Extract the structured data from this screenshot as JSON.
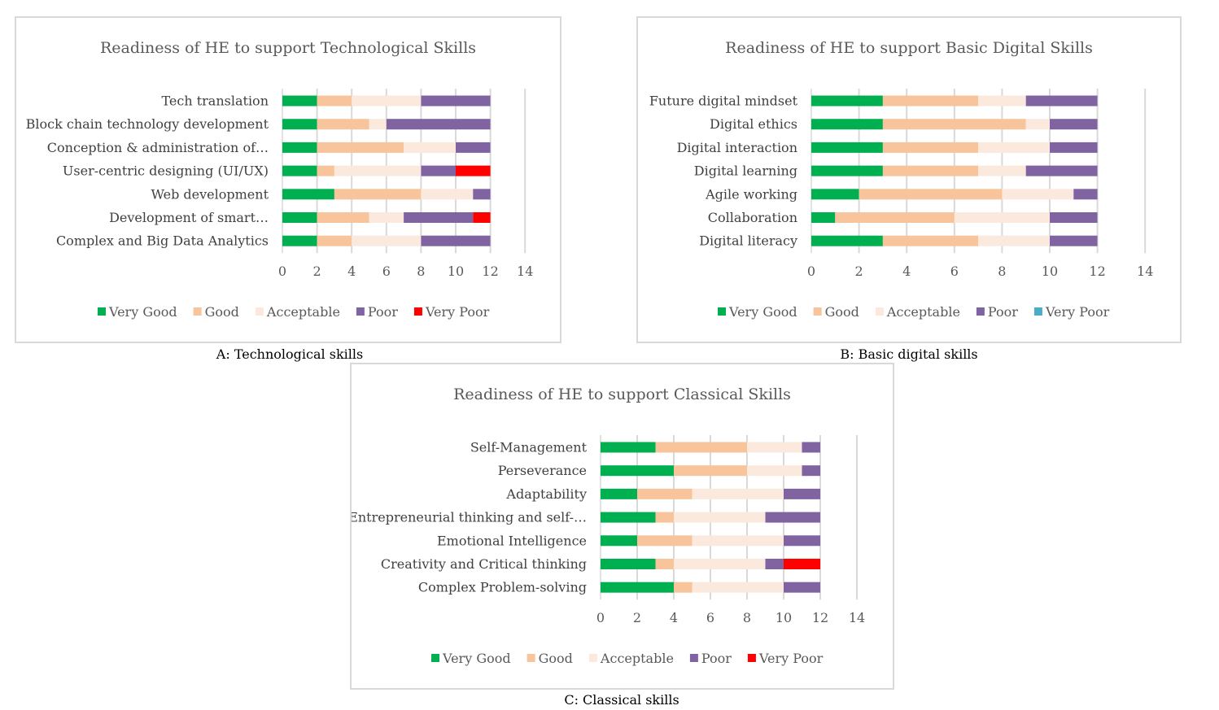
{
  "figure": {
    "captions": [
      "A: Technological skills",
      "B: Basic digital skills",
      "C: Classical skills"
    ]
  },
  "chart_data": [
    {
      "type": "bar",
      "orientation": "horizontal",
      "stacked": true,
      "title": "Readiness of HE to support Technological Skills",
      "categories": [
        "Tech translation",
        "Block chain technology development",
        "Conception & administration of…",
        "User-centric designing (UI/UX)",
        "Web development",
        "Development of smart…",
        "Complex and Big Data Analytics"
      ],
      "series": [
        {
          "name": "Very Good",
          "color": "#00b050",
          "values": [
            2,
            2,
            2,
            2,
            3,
            2,
            2
          ]
        },
        {
          "name": "Good",
          "color": "#f8c49b",
          "values": [
            2,
            3,
            5,
            1,
            5,
            3,
            2
          ]
        },
        {
          "name": "Acceptable",
          "color": "#fce9de",
          "values": [
            4,
            1,
            3,
            5,
            3,
            2,
            4
          ]
        },
        {
          "name": "Poor",
          "color": "#8064a2",
          "values": [
            4,
            6,
            2,
            2,
            1,
            4,
            4
          ]
        },
        {
          "name": "Very Poor",
          "color": "#ff0000",
          "values": [
            0,
            0,
            0,
            2,
            0,
            1,
            0
          ]
        }
      ],
      "xlim": [
        0,
        14
      ],
      "xticks": [
        0,
        2,
        4,
        6,
        8,
        10,
        12,
        14
      ],
      "grid": true,
      "legend": "bottom"
    },
    {
      "type": "bar",
      "orientation": "horizontal",
      "stacked": true,
      "title": "Readiness of HE to support Basic Digital Skills",
      "categories": [
        "Future digital mindset",
        "Digital ethics",
        "Digital interaction",
        "Digital learning",
        "Agile working",
        "Collaboration",
        "Digital literacy"
      ],
      "series": [
        {
          "name": "Very Good",
          "color": "#00b050",
          "values": [
            3,
            3,
            3,
            3,
            2,
            1,
            3
          ]
        },
        {
          "name": "Good",
          "color": "#f8c49b",
          "values": [
            4,
            6,
            4,
            4,
            6,
            5,
            4
          ]
        },
        {
          "name": "Acceptable",
          "color": "#fce9de",
          "values": [
            2,
            1,
            3,
            2,
            3,
            4,
            3
          ]
        },
        {
          "name": "Poor",
          "color": "#8064a2",
          "values": [
            3,
            2,
            2,
            3,
            1,
            2,
            2
          ]
        },
        {
          "name": "Very Poor",
          "color": "#4bacc6",
          "values": [
            0,
            0,
            0,
            0,
            0,
            0,
            0
          ]
        }
      ],
      "xlim": [
        0,
        14
      ],
      "xticks": [
        0,
        2,
        4,
        6,
        8,
        10,
        12,
        14
      ],
      "grid": true,
      "legend": "bottom"
    },
    {
      "type": "bar",
      "orientation": "horizontal",
      "stacked": true,
      "title": "Readiness of HE to support Classical Skills",
      "categories": [
        "Self-Management",
        "Perseverance",
        "Adaptability",
        "Entrepreneurial thinking and self-…",
        "Emotional Intelligence",
        "Creativity and Critical thinking",
        "Complex Problem-solving"
      ],
      "series": [
        {
          "name": "Very Good",
          "color": "#00b050",
          "values": [
            3,
            4,
            2,
            3,
            2,
            3,
            4
          ]
        },
        {
          "name": "Good",
          "color": "#f8c49b",
          "values": [
            5,
            4,
            3,
            1,
            3,
            1,
            1
          ]
        },
        {
          "name": "Acceptable",
          "color": "#fce9de",
          "values": [
            3,
            3,
            5,
            5,
            5,
            5,
            5
          ]
        },
        {
          "name": "Poor",
          "color": "#8064a2",
          "values": [
            1,
            1,
            2,
            3,
            2,
            1,
            2
          ]
        },
        {
          "name": "Very Poor",
          "color": "#ff0000",
          "values": [
            0,
            0,
            0,
            0,
            0,
            2,
            0
          ]
        }
      ],
      "xlim": [
        0,
        14
      ],
      "xticks": [
        0,
        2,
        4,
        6,
        8,
        10,
        12,
        14
      ],
      "grid": true,
      "legend": "bottom"
    }
  ]
}
